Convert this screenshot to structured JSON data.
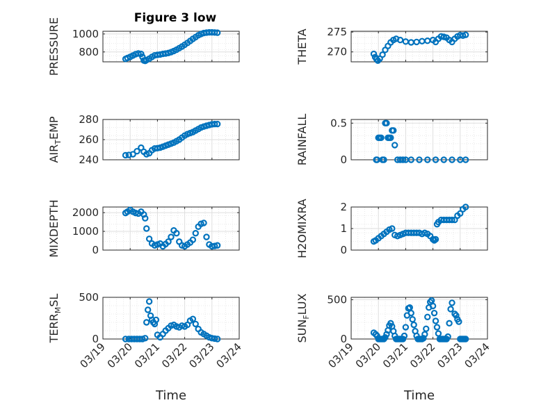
{
  "figure": {
    "title": "Figure 3 low",
    "marker_color": "#0072BD"
  },
  "chart_data": [
    {
      "type": "scatter",
      "title": "Figure 3 low",
      "ylabel": "PRESSURE",
      "xlabel": "",
      "xlim": [
        "03/19",
        "03/24"
      ],
      "ylim": [
        690,
        1030
      ],
      "yticks": [
        800,
        1000
      ],
      "grid": true,
      "x": [
        0.83,
        0.9,
        1.0,
        1.1,
        1.2,
        1.3,
        1.4,
        1.45,
        1.5,
        1.55,
        1.6,
        1.7,
        1.8,
        1.9,
        2.0,
        2.1,
        2.2,
        2.3,
        2.4,
        2.5,
        2.6,
        2.7,
        2.8,
        2.9,
        3.0,
        3.1,
        3.2,
        3.3,
        3.4,
        3.5,
        3.6,
        3.7,
        3.8,
        3.9,
        4.0,
        4.1,
        4.2
      ],
      "y": [
        722,
        733,
        745,
        760,
        775,
        783,
        778,
        745,
        705,
        700,
        710,
        725,
        745,
        762,
        768,
        772,
        778,
        782,
        788,
        798,
        810,
        825,
        842,
        860,
        880,
        900,
        922,
        945,
        965,
        985,
        1000,
        1010,
        1015,
        1018,
        1018,
        1016,
        1014
      ]
    },
    {
      "type": "scatter",
      "title": "",
      "ylabel": "THETA",
      "xlabel": "",
      "xlim": [
        "03/19",
        "03/24"
      ],
      "ylim": [
        267.5,
        275.2
      ],
      "yticks": [
        270,
        275
      ],
      "grid": true,
      "x": [
        0.83,
        0.88,
        0.93,
        0.98,
        1.05,
        1.15,
        1.25,
        1.35,
        1.45,
        1.55,
        1.65,
        1.8,
        2.0,
        2.2,
        2.4,
        2.6,
        2.8,
        3.0,
        3.1,
        3.2,
        3.3,
        3.4,
        3.5,
        3.6,
        3.7,
        3.8,
        3.9,
        4.0,
        4.1,
        4.2
      ],
      "y": [
        269.5,
        268.7,
        268.2,
        267.8,
        268.3,
        269.3,
        270.5,
        271.5,
        272.4,
        273.0,
        273.3,
        273.0,
        272.6,
        272.4,
        272.5,
        272.7,
        272.8,
        273.0,
        272.5,
        273.3,
        273.9,
        273.8,
        273.6,
        273.0,
        272.5,
        273.3,
        273.9,
        274.2,
        274.1,
        274.3
      ]
    },
    {
      "type": "scatter",
      "title": "",
      "ylabel": "AIR_TEMP",
      "xlabel": "",
      "xlim": [
        "03/19",
        "03/24"
      ],
      "ylim": [
        240,
        280
      ],
      "yticks": [
        240,
        260,
        280
      ],
      "grid": true,
      "x": [
        0.83,
        0.95,
        1.1,
        1.25,
        1.4,
        1.5,
        1.6,
        1.7,
        1.8,
        1.9,
        2.0,
        2.1,
        2.2,
        2.3,
        2.4,
        2.5,
        2.6,
        2.7,
        2.8,
        2.9,
        3.0,
        3.1,
        3.2,
        3.3,
        3.4,
        3.5,
        3.6,
        3.7,
        3.8,
        3.9,
        4.0,
        4.1,
        4.2
      ],
      "y": [
        244.5,
        244.8,
        245.5,
        248.5,
        252,
        248,
        245.5,
        246.5,
        249.5,
        251.2,
        251.5,
        252,
        253,
        254,
        255,
        256,
        257,
        258.5,
        260,
        262,
        264,
        265.5,
        266.5,
        267.5,
        269,
        270.5,
        272,
        273,
        273.8,
        274.5,
        275.2,
        275.5,
        275.5
      ]
    },
    {
      "type": "scatter",
      "title": "",
      "ylabel": "RAINFALL",
      "xlabel": "",
      "xlim": [
        "03/19",
        "03/24"
      ],
      "ylim": [
        0,
        0.55
      ],
      "yticks": [
        0,
        0.5
      ],
      "grid": true,
      "x": [
        0.92,
        0.95,
        1.0,
        1.05,
        1.1,
        1.15,
        1.2,
        1.25,
        1.3,
        1.35,
        1.4,
        1.45,
        1.5,
        1.55,
        1.6,
        1.7,
        1.8,
        1.9,
        2.0,
        2.2,
        2.5,
        2.8,
        3.1,
        3.4,
        3.7,
        4.0,
        4.2
      ],
      "y": [
        0,
        0,
        0.3,
        0.3,
        0.3,
        0,
        0,
        0.5,
        0.5,
        0.3,
        0.3,
        0.3,
        0.4,
        0.4,
        0.2,
        0,
        0,
        0,
        0,
        0,
        0,
        0,
        0,
        0,
        0,
        0,
        0
      ]
    },
    {
      "type": "scatter",
      "title": "",
      "ylabel": "MIXDEPTH",
      "xlabel": "",
      "xlim": [
        "03/19",
        "03/24"
      ],
      "ylim": [
        0,
        2300
      ],
      "yticks": [
        0,
        1000,
        2000
      ],
      "grid": true,
      "x": [
        0.83,
        0.9,
        1.0,
        1.1,
        1.2,
        1.3,
        1.4,
        1.5,
        1.55,
        1.6,
        1.7,
        1.8,
        1.9,
        2.0,
        2.1,
        2.2,
        2.3,
        2.4,
        2.5,
        2.6,
        2.7,
        2.8,
        2.9,
        3.0,
        3.1,
        3.2,
        3.3,
        3.4,
        3.5,
        3.6,
        3.7,
        3.8,
        3.9,
        4.0,
        4.1,
        4.2
      ],
      "y": [
        1980,
        2050,
        2150,
        2050,
        1980,
        1950,
        2050,
        1900,
        1700,
        1150,
        600,
        350,
        250,
        300,
        350,
        200,
        320,
        450,
        700,
        1050,
        900,
        450,
        250,
        200,
        300,
        400,
        550,
        900,
        1250,
        1400,
        1450,
        700,
        300,
        200,
        220,
        250
      ]
    },
    {
      "type": "scatter",
      "title": "",
      "ylabel": "H2OMIXRA",
      "xlabel": "",
      "xlim": [
        "03/19",
        "03/24"
      ],
      "ylim": [
        0,
        2.0
      ],
      "yticks": [
        0,
        1,
        2
      ],
      "grid": true,
      "x": [
        0.83,
        0.9,
        1.0,
        1.1,
        1.2,
        1.3,
        1.4,
        1.5,
        1.6,
        1.7,
        1.8,
        1.9,
        2.0,
        2.1,
        2.2,
        2.3,
        2.4,
        2.5,
        2.6,
        2.7,
        2.8,
        2.9,
        3.0,
        3.05,
        3.1,
        3.15,
        3.2,
        3.3,
        3.4,
        3.5,
        3.6,
        3.7,
        3.8,
        3.9,
        4.0,
        4.1,
        4.2
      ],
      "y": [
        0.4,
        0.45,
        0.55,
        0.65,
        0.75,
        0.85,
        0.95,
        1.0,
        0.7,
        0.65,
        0.7,
        0.75,
        0.8,
        0.8,
        0.8,
        0.8,
        0.8,
        0.8,
        0.75,
        0.8,
        0.75,
        0.65,
        0.5,
        0.45,
        0.5,
        1.2,
        1.3,
        1.4,
        1.4,
        1.4,
        1.4,
        1.4,
        1.4,
        1.6,
        1.7,
        1.9,
        2.0
      ]
    },
    {
      "type": "scatter",
      "title": "",
      "ylabel": "TERR_MSL",
      "xlabel": "Time",
      "xlim": [
        "03/19",
        "03/24"
      ],
      "ylim": [
        0,
        500
      ],
      "yticks": [
        0,
        500
      ],
      "grid": true,
      "xticks": [
        "03/19",
        "03/20",
        "03/21",
        "03/22",
        "03/23",
        "03/24"
      ],
      "x": [
        0.83,
        0.95,
        1.05,
        1.15,
        1.25,
        1.35,
        1.45,
        1.55,
        1.6,
        1.65,
        1.7,
        1.75,
        1.8,
        1.85,
        1.9,
        1.95,
        2.0,
        2.1,
        2.2,
        2.3,
        2.4,
        2.5,
        2.6,
        2.7,
        2.8,
        2.9,
        3.0,
        3.1,
        3.2,
        3.3,
        3.4,
        3.5,
        3.6,
        3.7,
        3.8,
        3.9,
        4.0,
        4.1,
        4.2
      ],
      "y": [
        0,
        0,
        0,
        0,
        0,
        0,
        0,
        10,
        200,
        350,
        450,
        280,
        230,
        200,
        180,
        230,
        50,
        20,
        60,
        100,
        130,
        160,
        170,
        150,
        140,
        160,
        150,
        170,
        220,
        240,
        180,
        120,
        80,
        60,
        40,
        20,
        10,
        5,
        0
      ]
    },
    {
      "type": "scatter",
      "title": "",
      "ylabel": "SUN_FLUX",
      "xlabel": "Time",
      "xlim": [
        "03/19",
        "03/24"
      ],
      "ylim": [
        0,
        530
      ],
      "yticks": [
        0,
        500
      ],
      "grid": true,
      "xticks": [
        "03/19",
        "03/20",
        "03/21",
        "03/22",
        "03/23",
        "03/24"
      ],
      "x": [
        0.83,
        0.9,
        0.95,
        1.0,
        1.05,
        1.1,
        1.15,
        1.2,
        1.25,
        1.3,
        1.35,
        1.4,
        1.45,
        1.5,
        1.55,
        1.6,
        1.65,
        1.7,
        1.75,
        1.8,
        1.85,
        1.9,
        1.95,
        2.0,
        2.05,
        2.1,
        2.15,
        2.2,
        2.25,
        2.3,
        2.35,
        2.4,
        2.45,
        2.5,
        2.55,
        2.6,
        2.65,
        2.7,
        2.75,
        2.8,
        2.85,
        2.9,
        2.95,
        3.0,
        3.05,
        3.1,
        3.15,
        3.2,
        3.25,
        3.3,
        3.35,
        3.4,
        3.45,
        3.5,
        3.55,
        3.6,
        3.65,
        3.7,
        3.8,
        3.85,
        3.9,
        3.95,
        4.0,
        4.05,
        4.1,
        4.15,
        4.2
      ],
      "y": [
        80,
        60,
        40,
        0,
        0,
        0,
        0,
        0,
        20,
        60,
        110,
        170,
        200,
        160,
        100,
        40,
        0,
        0,
        0,
        0,
        0,
        0,
        40,
        150,
        300,
        390,
        400,
        330,
        250,
        180,
        100,
        40,
        0,
        0,
        0,
        0,
        10,
        60,
        130,
        280,
        400,
        470,
        490,
        420,
        330,
        230,
        150,
        70,
        0,
        0,
        0,
        0,
        0,
        0,
        30,
        200,
        380,
        460,
        320,
        300,
        250,
        220,
        0,
        0,
        0,
        0,
        0
      ]
    }
  ]
}
